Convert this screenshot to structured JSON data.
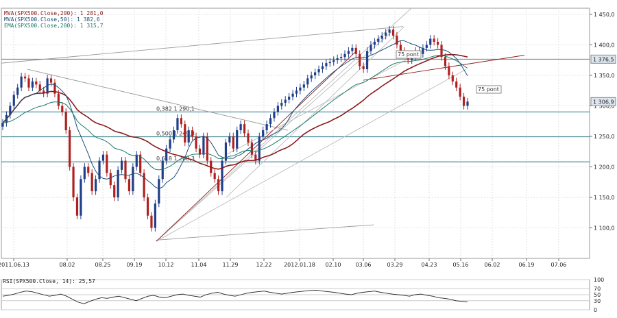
{
  "chart_data": [
    {
      "type": "candlestick",
      "legend": [
        {
          "text": "MVA(SPX500.Close,200): 1 281,0",
          "color": "#8b1a1a"
        },
        {
          "text": "MVA(SPX500.Close,50): 1 382,6",
          "color": "#1a4f7a"
        },
        {
          "text": "EMA(SPX500.Close,200): 1 315,7",
          "color": "#1a7a6a"
        }
      ],
      "ylim": [
        1050,
        1460
      ],
      "y_ticks": [
        {
          "value": 1450,
          "label": "1 450,0"
        },
        {
          "value": 1400,
          "label": "1 400,0"
        },
        {
          "value": 1350,
          "label": "1 350,0"
        },
        {
          "value": 1300,
          "label": "1 300,0"
        },
        {
          "value": 1250,
          "label": "1 250,0"
        },
        {
          "value": 1200,
          "label": "1 200,0"
        },
        {
          "value": 1150,
          "label": "1 150,0"
        },
        {
          "value": 1100,
          "label": "1 100,0"
        }
      ],
      "x_ticks": [
        "2011.06.13",
        "08.02",
        "08.25",
        "09.19",
        "10.12",
        "11.04",
        "11.29",
        "12.22",
        "2012.01.18",
        "02.10",
        "03.06",
        "03.29",
        "04.23",
        "05.16",
        "06.02",
        "06.19",
        "07.06"
      ],
      "value_tags": [
        {
          "value": 1376.5,
          "label": "1 376,5"
        },
        {
          "value": 1306.9,
          "label": "1 306,9"
        }
      ],
      "fib_levels": [
        {
          "value": 1290.1,
          "label": "0,382 1 290,1"
        },
        {
          "value": 1249.3,
          "label": "0,500 1 249,3"
        },
        {
          "value": 1208.3,
          "label": "0,618 1 208,3"
        }
      ],
      "annotations": [
        "75 pont",
        "75 pont"
      ],
      "close_series": [
        1272,
        1285,
        1300,
        1318,
        1330,
        1348,
        1345,
        1330,
        1340,
        1335,
        1325,
        1320,
        1345,
        1338,
        1320,
        1300,
        1290,
        1260,
        1200,
        1150,
        1120,
        1180,
        1200,
        1190,
        1160,
        1180,
        1210,
        1220,
        1190,
        1170,
        1150,
        1195,
        1210,
        1180,
        1160,
        1200,
        1220,
        1190,
        1150,
        1120,
        1100,
        1140,
        1180,
        1210,
        1230,
        1245,
        1260,
        1280,
        1270,
        1240,
        1260,
        1250,
        1230,
        1220,
        1250,
        1210,
        1190,
        1180,
        1160,
        1210,
        1240,
        1250,
        1230,
        1260,
        1270,
        1255,
        1240,
        1220,
        1210,
        1250,
        1260,
        1270,
        1280,
        1290,
        1300,
        1305,
        1310,
        1315,
        1320,
        1325,
        1330,
        1335,
        1345,
        1350,
        1355,
        1360,
        1365,
        1370,
        1372,
        1375,
        1378,
        1380,
        1385,
        1390,
        1395,
        1385,
        1365,
        1360,
        1390,
        1400,
        1405,
        1410,
        1415,
        1420,
        1425,
        1415,
        1400,
        1390,
        1385,
        1375,
        1380,
        1390,
        1385,
        1395,
        1400,
        1410,
        1405,
        1400,
        1380,
        1365,
        1350,
        1340,
        1330,
        1315,
        1300,
        1307
      ]
    },
    {
      "type": "line",
      "legend": [
        {
          "text": "RSI(SPX500.Close, 14): 25,57",
          "color": "#222222"
        }
      ],
      "ylim": [
        0,
        100
      ],
      "y_ticks": [
        {
          "value": 100,
          "label": "100"
        },
        {
          "value": 70,
          "label": "70"
        },
        {
          "value": 50,
          "label": "50"
        },
        {
          "value": 30,
          "label": "30"
        },
        {
          "value": 0,
          "label": "0"
        }
      ],
      "values": [
        45,
        48,
        52,
        58,
        62,
        60,
        55,
        50,
        45,
        48,
        52,
        45,
        35,
        25,
        20,
        28,
        35,
        40,
        38,
        42,
        45,
        40,
        35,
        30,
        38,
        45,
        48,
        42,
        40,
        45,
        50,
        52,
        48,
        45,
        42,
        50,
        55,
        58,
        52,
        48,
        45,
        50,
        55,
        58,
        60,
        62,
        58,
        55,
        52,
        55,
        58,
        60,
        62,
        64,
        65,
        62,
        60,
        58,
        55,
        52,
        50,
        55,
        58,
        60,
        62,
        58,
        55,
        52,
        50,
        48,
        45,
        50,
        52,
        48,
        45,
        40,
        38,
        35,
        30,
        28,
        25.57
      ]
    }
  ]
}
